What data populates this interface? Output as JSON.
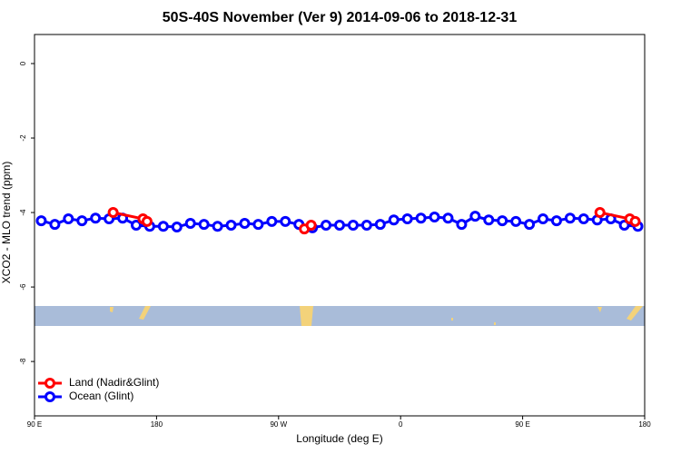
{
  "chart_data": {
    "type": "line",
    "title": "50S-40S November (Ver 9)   2014-09-06 to 2018-12-31",
    "x_label": "Longitude (deg E)",
    "y_label": "XCO2 - MLO trend (ppm)",
    "x": [
      95,
      105,
      115,
      125,
      135,
      145,
      155,
      165,
      175,
      185,
      195,
      205,
      215,
      225,
      235,
      245,
      255,
      265,
      275,
      285,
      295,
      305,
      315,
      325,
      335,
      345,
      355,
      365,
      375,
      385,
      395,
      405,
      415,
      425,
      435,
      445,
      455,
      465,
      475,
      485,
      495,
      505,
      515,
      525,
      535
    ],
    "series": [
      {
        "name": "Ocean (Glint)",
        "color": "#0000ff",
        "values": [
          -4.22,
          -4.32,
          -4.17,
          -4.22,
          -4.15,
          -4.17,
          -4.15,
          -4.34,
          -4.37,
          -4.37,
          -4.39,
          -4.29,
          -4.32,
          -4.37,
          -4.34,
          -4.29,
          -4.32,
          -4.24,
          -4.24,
          -4.32,
          -4.41,
          -4.34,
          -4.34,
          -4.34,
          -4.34,
          -4.32,
          -4.2,
          -4.17,
          -4.15,
          -4.12,
          -4.15,
          -4.32,
          -4.1,
          -4.2,
          -4.22,
          -4.24,
          -4.32,
          -4.17,
          -4.22,
          -4.15,
          -4.17,
          -4.2,
          -4.17,
          -4.34,
          -4.37
        ]
      },
      {
        "name": "Land (Nadir&Glint)",
        "color": "#ff0000",
        "x": [
          148,
          170,
          173,
          null,
          289,
          294,
          null,
          507,
          529,
          533
        ],
        "values": [
          -4.0,
          -4.17,
          -4.24,
          null,
          -4.44,
          -4.34,
          null,
          -4.0,
          -4.17,
          -4.24
        ]
      }
    ],
    "xlim": [
      90,
      540
    ],
    "ylim": [
      -9.46,
      0.78
    ],
    "xticks": [
      {
        "value": 90,
        "label": "90 E"
      },
      180,
      {
        "value": 270,
        "label": "90 W"
      },
      {
        "value": 360,
        "label": "0"
      },
      {
        "value": 450,
        "label": "90 E"
      },
      {
        "value": 540,
        "label": "180"
      }
    ],
    "yticks": [
      0,
      -2,
      -4,
      -6,
      -8
    ],
    "legend": "bottomleft"
  }
}
